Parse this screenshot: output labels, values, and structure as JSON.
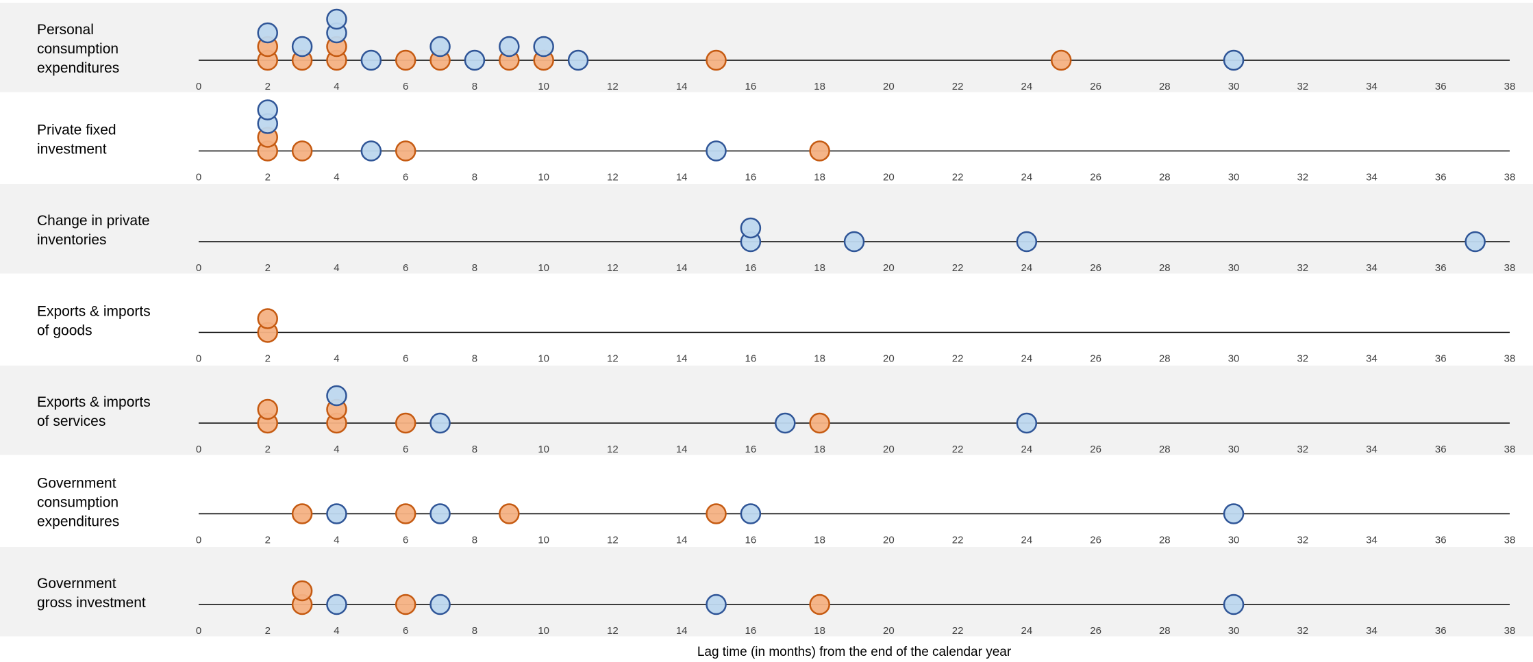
{
  "chart_data": {
    "type": "scatter",
    "title": "",
    "xlabel": "Lag time (in months) from the end of the calendar year",
    "ylabel": "",
    "xlim": [
      0,
      38
    ],
    "xticks": [
      0,
      2,
      4,
      6,
      8,
      10,
      12,
      14,
      16,
      18,
      20,
      22,
      24,
      26,
      28,
      30,
      32,
      34,
      36,
      38
    ],
    "grid": false,
    "legend": "none",
    "colors": {
      "orange_fill": "#f4b183",
      "orange_stroke": "#c55a11",
      "blue_fill": "#bdd7ee",
      "blue_stroke": "#2f5597",
      "band": "#f2f2f2"
    },
    "rows": [
      {
        "label_lines": [
          "Personal",
          "consumption",
          "expenditures"
        ],
        "orange": [
          2,
          2,
          3,
          4,
          4,
          6,
          7,
          9,
          10,
          15,
          25
        ],
        "blue": [
          2,
          3,
          4,
          4,
          5,
          7,
          8,
          9,
          10,
          11,
          30
        ]
      },
      {
        "label_lines": [
          "Private fixed",
          "investment"
        ],
        "orange": [
          2,
          2,
          3,
          6,
          18
        ],
        "blue": [
          2,
          2,
          5,
          15
        ]
      },
      {
        "label_lines": [
          "Change in private",
          "inventories"
        ],
        "orange": [],
        "blue": [
          16,
          16,
          19,
          24,
          37
        ]
      },
      {
        "label_lines": [
          "Exports & imports",
          "of goods"
        ],
        "orange": [
          2,
          2
        ],
        "blue": []
      },
      {
        "label_lines": [
          "Exports & imports",
          "of services"
        ],
        "orange": [
          2,
          2,
          4,
          4,
          6,
          18
        ],
        "blue": [
          4,
          7,
          17,
          24
        ]
      },
      {
        "label_lines": [
          "Government",
          "consumption",
          "expenditures"
        ],
        "orange": [
          3,
          6,
          9,
          15
        ],
        "blue": [
          4,
          7,
          16,
          30
        ]
      },
      {
        "label_lines": [
          "Government",
          "gross investment"
        ],
        "orange": [
          3,
          3,
          6,
          18
        ],
        "blue": [
          4,
          7,
          15,
          30
        ]
      }
    ]
  }
}
